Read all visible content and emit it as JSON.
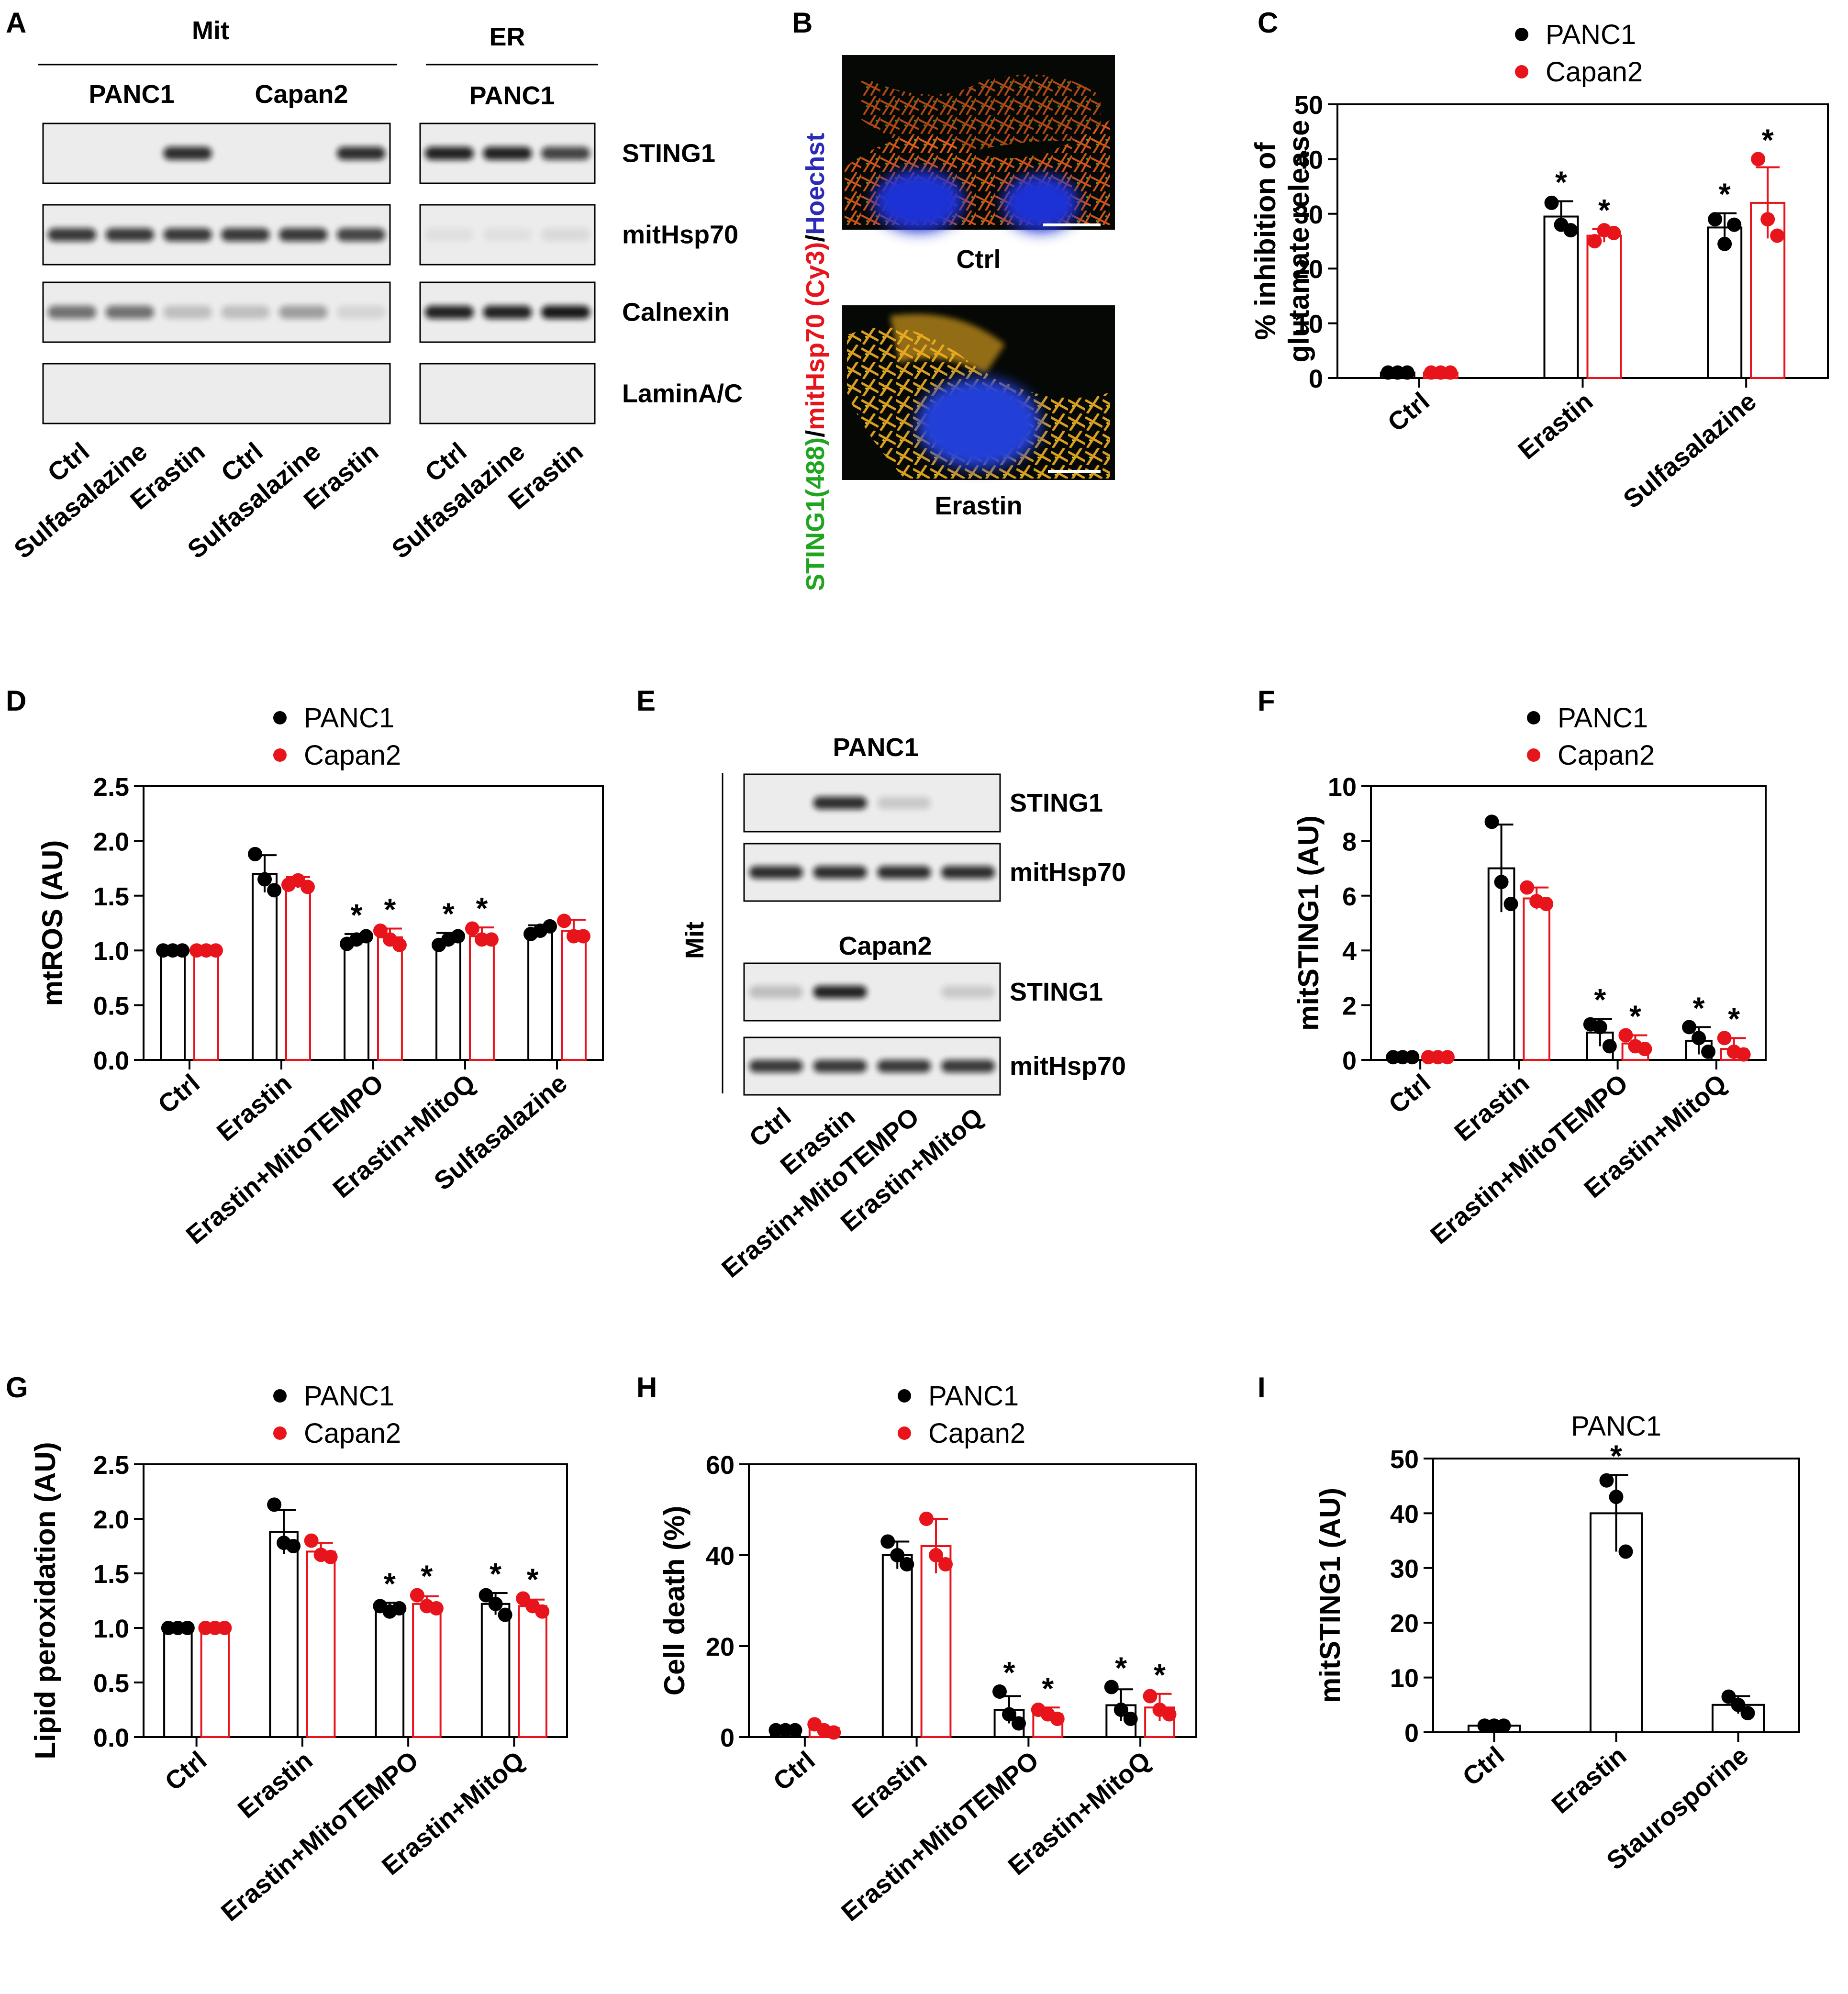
{
  "figure": {
    "panel_letters": [
      "A",
      "B",
      "C",
      "D",
      "E",
      "F",
      "G",
      "H",
      "I"
    ],
    "colors": {
      "panc1": "#000000",
      "capan2": "#e8141b",
      "sting_green": "#1fa51f",
      "cy3_red": "#e8141b",
      "hoechst_blue": "#2b2bb5"
    }
  },
  "blot_a": {
    "mit_label": "Mit",
    "er_label": "ER",
    "mit_groups": [
      "PANC1",
      "Capan2"
    ],
    "er_group": "PANC1",
    "rows": [
      "STING1",
      "mitHsp70",
      "Calnexin",
      "LaminA/C"
    ],
    "mit_lanes": [
      "Ctrl",
      "Sulfasalazine",
      "Erastin",
      "Ctrl",
      "Sulfasalazine",
      "Erastin"
    ],
    "er_lanes": [
      "Ctrl",
      "Sulfasalazine",
      "Erastin"
    ],
    "mit_intensity": [
      [
        0,
        0,
        0.85,
        0,
        0,
        0.85
      ],
      [
        0.8,
        0.8,
        0.8,
        0.8,
        0.8,
        0.75
      ],
      [
        0.55,
        0.55,
        0.2,
        0.2,
        0.35,
        0.1
      ],
      [
        0,
        0,
        0,
        0,
        0,
        0
      ]
    ],
    "er_intensity": [
      [
        0.9,
        0.9,
        0.75
      ],
      [
        0.05,
        0.05,
        0.08
      ],
      [
        0.9,
        0.9,
        0.95
      ],
      [
        0,
        0,
        0
      ]
    ]
  },
  "image_b": {
    "y_label_parts": [
      {
        "text": "STING1(488)",
        "color": "#1fa51f"
      },
      {
        "text": "/",
        "color": "#000000"
      },
      {
        "text": "mitHsp70 (Cy3)",
        "color": "#e8141b"
      },
      {
        "text": "/",
        "color": "#000000"
      },
      {
        "text": "Hoechst",
        "color": "#2b2bb5"
      }
    ],
    "captions": [
      "Ctrl",
      "Erastin"
    ]
  },
  "blot_e": {
    "side_label": "Mit",
    "groups": [
      {
        "title": "PANC1",
        "rows": [
          "STING1",
          "mitHsp70"
        ],
        "intensity": [
          [
            0,
            0.85,
            0.15,
            0
          ],
          [
            0.85,
            0.85,
            0.85,
            0.85
          ]
        ]
      },
      {
        "title": "Capan2",
        "rows": [
          "STING1",
          "mitHsp70"
        ],
        "intensity": [
          [
            0.2,
            0.9,
            0,
            0.15
          ],
          [
            0.8,
            0.8,
            0.8,
            0.8
          ]
        ]
      }
    ],
    "lanes": [
      "Ctrl",
      "Erastin",
      "Erastin+MitoTEMPO",
      "Erastin+MitoQ"
    ]
  },
  "chart_data": [
    {
      "panel": "C",
      "type": "bar",
      "ylabel": [
        "% inhibition of",
        "glutamate release"
      ],
      "ylim": [
        0,
        50
      ],
      "yticks": [
        0,
        10,
        20,
        30,
        40,
        50
      ],
      "categories": [
        "Ctrl",
        "Erastin",
        "Sulfasalazine"
      ],
      "series": [
        {
          "name": "PANC1",
          "values": [
            1,
            29.5,
            27.5
          ],
          "errors": [
            0,
            2.8,
            2.6
          ],
          "points": [
            [
              1,
              1,
              1
            ],
            [
              32,
              28,
              27
            ],
            [
              29,
              24.5,
              28
            ]
          ]
        },
        {
          "name": "Capan2",
          "values": [
            1,
            26,
            32
          ],
          "errors": [
            0,
            1.2,
            6.5
          ],
          "points": [
            [
              1,
              1,
              1
            ],
            [
              25,
              27,
              26.5
            ],
            [
              40,
              29,
              26
            ]
          ]
        }
      ],
      "significant": [
        [
          false,
          true,
          true
        ],
        [
          false,
          true,
          true
        ]
      ],
      "legend": "top"
    },
    {
      "panel": "D",
      "type": "bar",
      "ylabel": [
        "mtROS (AU)"
      ],
      "ylim": [
        0,
        2.5
      ],
      "yticks": [
        "0.0",
        "0.5",
        "1.0",
        "1.5",
        "2.0",
        "2.5"
      ],
      "ytick_values": [
        0,
        0.5,
        1,
        1.5,
        2,
        2.5
      ],
      "categories": [
        "Ctrl",
        "Erastin",
        "Erastin+MitoTEMPO",
        "Erastin+MitoQ",
        "Sulfasalazine"
      ],
      "series": [
        {
          "name": "PANC1",
          "values": [
            1,
            1.7,
            1.1,
            1.1,
            1.18
          ],
          "errors": [
            0,
            0.17,
            0.05,
            0.06,
            0.05
          ],
          "points": [
            [
              1,
              1,
              1
            ],
            [
              1.88,
              1.65,
              1.55
            ],
            [
              1.06,
              1.1,
              1.13
            ],
            [
              1.05,
              1.1,
              1.13
            ],
            [
              1.15,
              1.18,
              1.22
            ]
          ]
        },
        {
          "name": "Capan2",
          "values": [
            1,
            1.62,
            1.12,
            1.13,
            1.18
          ],
          "errors": [
            0,
            0.05,
            0.08,
            0.08,
            0.1
          ],
          "points": [
            [
              1,
              1,
              1
            ],
            [
              1.6,
              1.64,
              1.58
            ],
            [
              1.18,
              1.1,
              1.05
            ],
            [
              1.2,
              1.1,
              1.1
            ],
            [
              1.27,
              1.13,
              1.13
            ]
          ]
        }
      ],
      "significant": [
        [
          false,
          false,
          true,
          true,
          false
        ],
        [
          false,
          false,
          true,
          true,
          false
        ]
      ],
      "legend": "top"
    },
    {
      "panel": "F",
      "type": "bar",
      "ylabel": [
        "mitSTING1 (AU)"
      ],
      "ylim": [
        0,
        10
      ],
      "yticks": [
        0,
        2,
        4,
        6,
        8,
        10
      ],
      "categories": [
        "Ctrl",
        "Erastin",
        "Erastin+MitoTEMPO",
        "Erastin+MitoQ"
      ],
      "series": [
        {
          "name": "PANC1",
          "values": [
            0.1,
            7,
            1,
            0.7
          ],
          "errors": [
            0,
            1.6,
            0.5,
            0.5
          ],
          "points": [
            [
              0.1,
              0.1,
              0.1
            ],
            [
              8.7,
              6.5,
              5.7
            ],
            [
              1.3,
              1.2,
              0.5
            ],
            [
              1.2,
              0.8,
              0.3
            ]
          ]
        },
        {
          "name": "Capan2",
          "values": [
            0.1,
            5.9,
            0.6,
            0.4
          ],
          "errors": [
            0,
            0.4,
            0.3,
            0.4
          ],
          "points": [
            [
              0.1,
              0.1,
              0.1
            ],
            [
              6.3,
              5.8,
              5.7
            ],
            [
              0.9,
              0.5,
              0.4
            ],
            [
              0.8,
              0.3,
              0.2
            ]
          ]
        }
      ],
      "significant": [
        [
          false,
          false,
          true,
          true
        ],
        [
          false,
          false,
          true,
          true
        ]
      ],
      "legend": "top"
    },
    {
      "panel": "G",
      "type": "bar",
      "ylabel": [
        "Lipid peroxidation (AU)"
      ],
      "ylim": [
        0,
        2.5
      ],
      "yticks": [
        "0.0",
        "0.5",
        "1.0",
        "1.5",
        "2.0",
        "2.5"
      ],
      "ytick_values": [
        0,
        0.5,
        1,
        1.5,
        2,
        2.5
      ],
      "categories": [
        "Ctrl",
        "Erastin",
        "Erastin+MitoTEMPO",
        "Erastin+MitoQ"
      ],
      "series": [
        {
          "name": "PANC1",
          "values": [
            1,
            1.88,
            1.18,
            1.22
          ],
          "errors": [
            0,
            0.2,
            0.05,
            0.1
          ],
          "points": [
            [
              1,
              1,
              1
            ],
            [
              2.13,
              1.78,
              1.75
            ],
            [
              1.2,
              1.15,
              1.18
            ],
            [
              1.3,
              1.22,
              1.12
            ]
          ]
        },
        {
          "name": "Capan2",
          "values": [
            1,
            1.7,
            1.22,
            1.2
          ],
          "errors": [
            0,
            0.08,
            0.07,
            0.06
          ],
          "points": [
            [
              1,
              1,
              1
            ],
            [
              1.8,
              1.67,
              1.65
            ],
            [
              1.3,
              1.2,
              1.18
            ],
            [
              1.27,
              1.2,
              1.15
            ]
          ]
        }
      ],
      "significant": [
        [
          false,
          false,
          true,
          true
        ],
        [
          false,
          false,
          true,
          true
        ]
      ],
      "legend": "top"
    },
    {
      "panel": "H",
      "type": "bar",
      "ylabel": [
        "Cell death (%)"
      ],
      "ylim": [
        0,
        60
      ],
      "yticks": [
        0,
        20,
        40,
        60
      ],
      "categories": [
        "Ctrl",
        "Erastin",
        "Erastin+MitoTEMPO",
        "Erastin+MitoQ"
      ],
      "series": [
        {
          "name": "PANC1",
          "values": [
            1.5,
            40,
            6,
            7
          ],
          "errors": [
            0,
            3,
            3,
            3.5
          ],
          "points": [
            [
              1.5,
              1.5,
              1.5
            ],
            [
              43,
              40,
              38
            ],
            [
              10,
              5,
              3
            ],
            [
              11,
              6,
              4
            ]
          ]
        },
        {
          "name": "Capan2",
          "values": [
            2,
            42,
            5,
            6.5
          ],
          "errors": [
            0,
            6,
            1.5,
            3
          ],
          "points": [
            [
              2.8,
              1.5,
              1
            ],
            [
              48,
              40,
              38
            ],
            [
              6,
              5,
              4
            ],
            [
              9,
              6,
              5
            ]
          ]
        }
      ],
      "significant": [
        [
          false,
          false,
          true,
          true
        ],
        [
          false,
          false,
          true,
          true
        ]
      ],
      "legend": "top"
    },
    {
      "panel": "I",
      "type": "bar",
      "title": "PANC1",
      "ylabel": [
        "mitSTING1 (AU)"
      ],
      "ylim": [
        0,
        50
      ],
      "yticks": [
        0,
        10,
        20,
        30,
        40,
        50
      ],
      "categories": [
        "Ctrl",
        "Erastin",
        "Staurosporine"
      ],
      "series": [
        {
          "name": "PANC1",
          "values": [
            1.2,
            40,
            5
          ],
          "errors": [
            0,
            7,
            1.6
          ],
          "points": [
            [
              1.2,
              1.2,
              1.2
            ],
            [
              46,
              43,
              33
            ],
            [
              6.5,
              5,
              3.5
            ]
          ]
        }
      ],
      "significant": [
        [
          false,
          true,
          false
        ]
      ]
    }
  ]
}
